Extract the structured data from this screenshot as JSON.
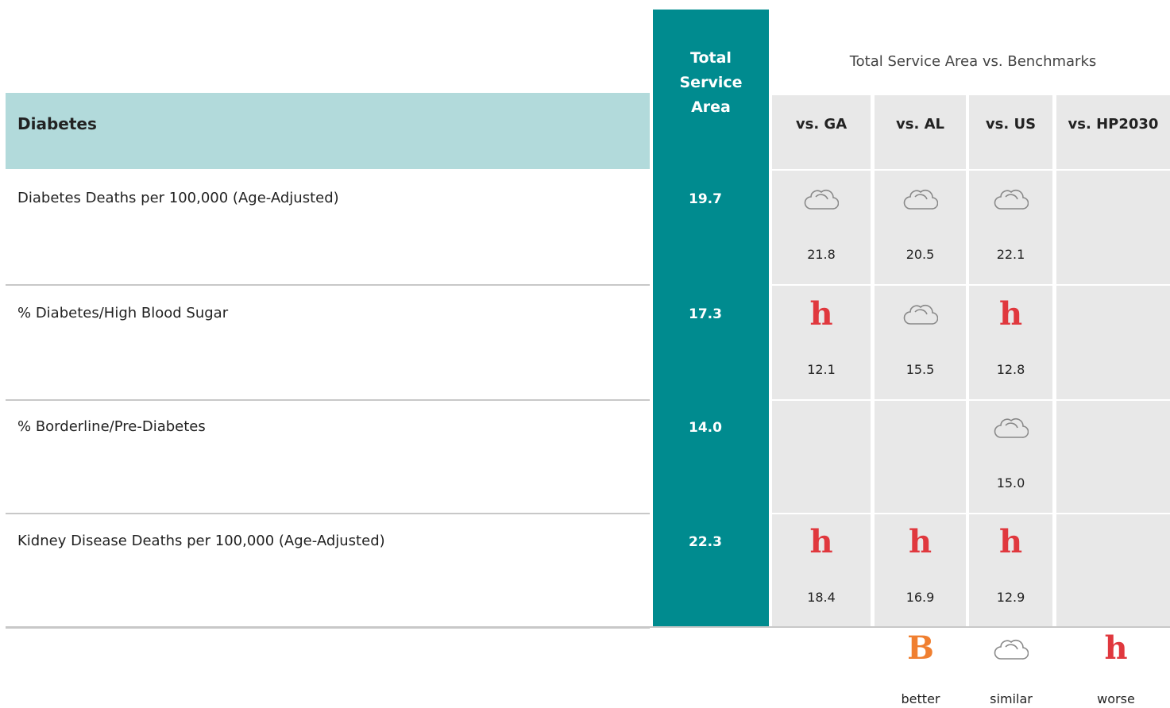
{
  "header": {
    "column_title": "Total Service Area",
    "benchmarks_title": "Total Service Area vs. Benchmarks"
  },
  "table": {
    "section": "Diabetes",
    "columns": [
      "vs. GA",
      "vs. AL",
      "vs. US",
      "vs. HP2030"
    ],
    "rows": [
      {
        "label": "Diabetes Deaths per 100,000 (Age-Adjusted)",
        "value": "19.7",
        "benchmarks": [
          {
            "value": "21.8"
          },
          {
            "value": "20.5"
          },
          {
            "value": "22.1"
          },
          null
        ]
      },
      {
        "label": "% Diabetes/High Blood Sugar",
        "value": "17.3",
        "benchmarks": [
          {
            "icon": "h",
            "value": "12.1"
          },
          {
            "value": "15.5"
          },
          {
            "icon": "h",
            "value": "12.8"
          },
          null
        ]
      },
      {
        "label": "% Borderline/Pre-Diabetes",
        "value": "14.0",
        "benchmarks": [
          null,
          null,
          {
            "value": "15.0"
          },
          null
        ]
      },
      {
        "label": "Kidney Disease Deaths per 100,000 (Age-Adjusted)",
        "value": "22.3",
        "benchmarks": [
          {
            "icon": "h",
            "value": "18.4"
          },
          {
            "icon": "h",
            "value": "16.9"
          },
          {
            "icon": "h",
            "value": "12.9"
          },
          null
        ]
      }
    ]
  },
  "legend": [
    {
      "icon": "B",
      "label": "better"
    },
    {
      "label": "similar"
    },
    {
      "icon": "h",
      "label": "worse"
    }
  ]
}
